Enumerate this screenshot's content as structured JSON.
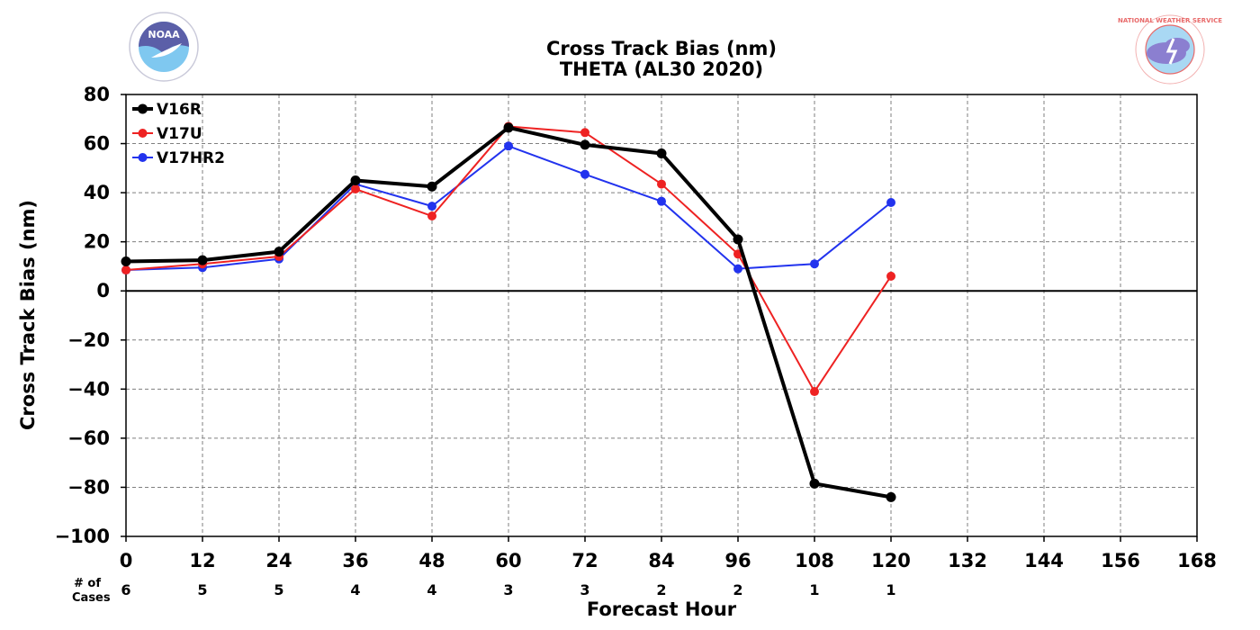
{
  "chart_data": {
    "type": "line",
    "title": "Cross Track Bias (nm)",
    "subtitle": "THETA (AL30 2020)",
    "xlabel": "Forecast Hour",
    "ylabel": "Cross Track Bias (nm)",
    "xlim": [
      0,
      168
    ],
    "ylim": [
      -100,
      80
    ],
    "x_ticks": [
      "0",
      "12",
      "24",
      "36",
      "48",
      "60",
      "72",
      "84",
      "96",
      "108",
      "120",
      "132",
      "144",
      "156",
      "168"
    ],
    "y_ticks": [
      "80",
      "60",
      "40",
      "20",
      "0",
      "−20",
      "−40",
      "−60",
      "−80",
      "−100"
    ],
    "grid": true,
    "legend_position": "top-left",
    "cases_label": [
      "# of",
      "Cases"
    ],
    "cases": [
      {
        "x": 0,
        "n": "6"
      },
      {
        "x": 12,
        "n": "5"
      },
      {
        "x": 24,
        "n": "5"
      },
      {
        "x": 36,
        "n": "4"
      },
      {
        "x": 48,
        "n": "4"
      },
      {
        "x": 60,
        "n": "3"
      },
      {
        "x": 72,
        "n": "3"
      },
      {
        "x": 84,
        "n": "2"
      },
      {
        "x": 96,
        "n": "2"
      },
      {
        "x": 108,
        "n": "1"
      },
      {
        "x": 120,
        "n": "1"
      }
    ],
    "x": [
      0,
      12,
      24,
      36,
      48,
      60,
      72,
      84,
      96,
      108,
      120
    ],
    "series": [
      {
        "name": "V16R",
        "color": "#000000",
        "width": 4,
        "marker": 5.5,
        "values": [
          12,
          12.5,
          16,
          45,
          42.5,
          66.5,
          59.5,
          56,
          21,
          -78.5,
          -84
        ]
      },
      {
        "name": "V17U",
        "color": "#ee2222",
        "width": 2,
        "marker": 5,
        "values": [
          8.5,
          11,
          14,
          41.5,
          30.5,
          67,
          64.5,
          43.5,
          15,
          -41,
          6
        ]
      },
      {
        "name": "V17HR2",
        "color": "#2233ee",
        "width": 2,
        "marker": 5,
        "values": [
          8.5,
          9.5,
          13,
          43.5,
          34.5,
          59,
          47.5,
          36.5,
          9,
          11,
          36
        ]
      }
    ]
  },
  "logos": {
    "noaa": {
      "text": "NOAA",
      "color": "#6fb7ea"
    },
    "nws": {
      "text": "NATIONAL WEATHER SERVICE",
      "color": "#e86a6a"
    }
  }
}
